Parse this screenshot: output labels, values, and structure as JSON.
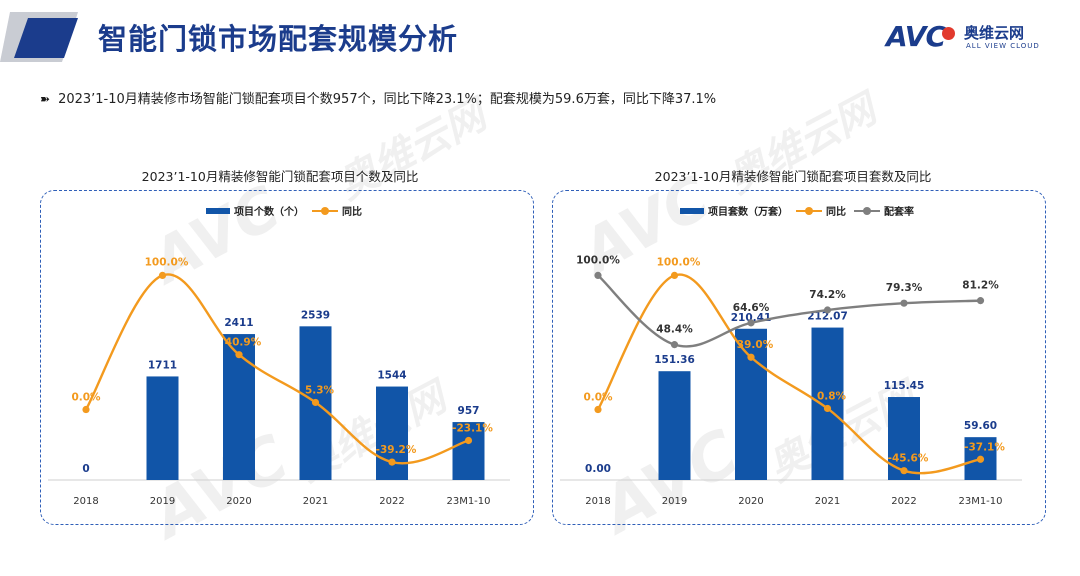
{
  "header": {
    "title": "智能门锁市场配套规模分析",
    "logo": {
      "brand": "AVC",
      "cn": "奥维云网",
      "en": "ALL VIEW CLOUD"
    }
  },
  "summary": {
    "bullet_icon": "double-arrow-icon",
    "text": "2023’1-10月精装修市场智能门锁配套项目个数957个，同比下降23.1%；配套规模为59.6万套，同比下降37.1%"
  },
  "watermark": {
    "cn": "奥维云网",
    "en": "ALL VIEW CLOUD",
    "brand": "AVC"
  },
  "colors": {
    "bar": "#1155a8",
    "yoy": "#f39a1e",
    "rate": "#7f7f7f",
    "title": "#1b3c8c",
    "panel_border": "#2f5fb8"
  },
  "chart_data": [
    {
      "type": "bar",
      "title": "2023’1-10月精装修智能门锁配套项目个数及同比",
      "categories": [
        "2018",
        "2019",
        "2020",
        "2021",
        "2022",
        "23M1-10"
      ],
      "series": [
        {
          "name": "项目个数（个）",
          "kind": "bar",
          "values": [
            0,
            1711,
            2411,
            2539,
            1544,
            957
          ],
          "labels": [
            "0",
            "1711",
            "2411",
            "2539",
            "1544",
            "957"
          ]
        },
        {
          "name": "同比",
          "kind": "line",
          "values": [
            0.0,
            100.0,
            40.9,
            5.3,
            -39.2,
            -23.1
          ],
          "labels": [
            "0.0%",
            "100.0%",
            "40.9%",
            "5.3%",
            "-39.2%",
            "-23.1%"
          ]
        }
      ],
      "bar_range": [
        0,
        3800
      ],
      "line_range": [
        -60,
        110
      ],
      "legend": [
        "项目个数（个）",
        "同比"
      ]
    },
    {
      "type": "bar",
      "title": "2023’1-10月精装修智能门锁配套项目套数及同比",
      "categories": [
        "2018",
        "2019",
        "2020",
        "2021",
        "2022",
        "23M1-10"
      ],
      "series": [
        {
          "name": "项目套数（万套）",
          "kind": "bar",
          "values": [
            0.0,
            151.36,
            210.41,
            212.07,
            115.45,
            59.6
          ],
          "labels": [
            "0.00",
            "151.36",
            "210.41",
            "212.07",
            "115.45",
            "59.60"
          ]
        },
        {
          "name": "同比",
          "kind": "line",
          "values": [
            0.0,
            100.0,
            39.0,
            0.8,
            -45.6,
            -37.1
          ],
          "labels": [
            "0.0%",
            "100.0%",
            "39.0%",
            "0.8%",
            "-45.6%",
            "-37.1%"
          ]
        },
        {
          "name": "配套率",
          "kind": "line",
          "values": [
            100.0,
            48.4,
            64.6,
            74.2,
            79.3,
            81.2
          ],
          "labels": [
            "100.0%",
            "48.4%",
            "64.6%",
            "74.2%",
            "79.3%",
            "81.2%"
          ]
        }
      ],
      "bar_range": [
        0,
        320
      ],
      "line_range": [
        -60,
        110
      ],
      "legend": [
        "项目套数（万套）",
        "同比",
        "配套率"
      ]
    }
  ]
}
